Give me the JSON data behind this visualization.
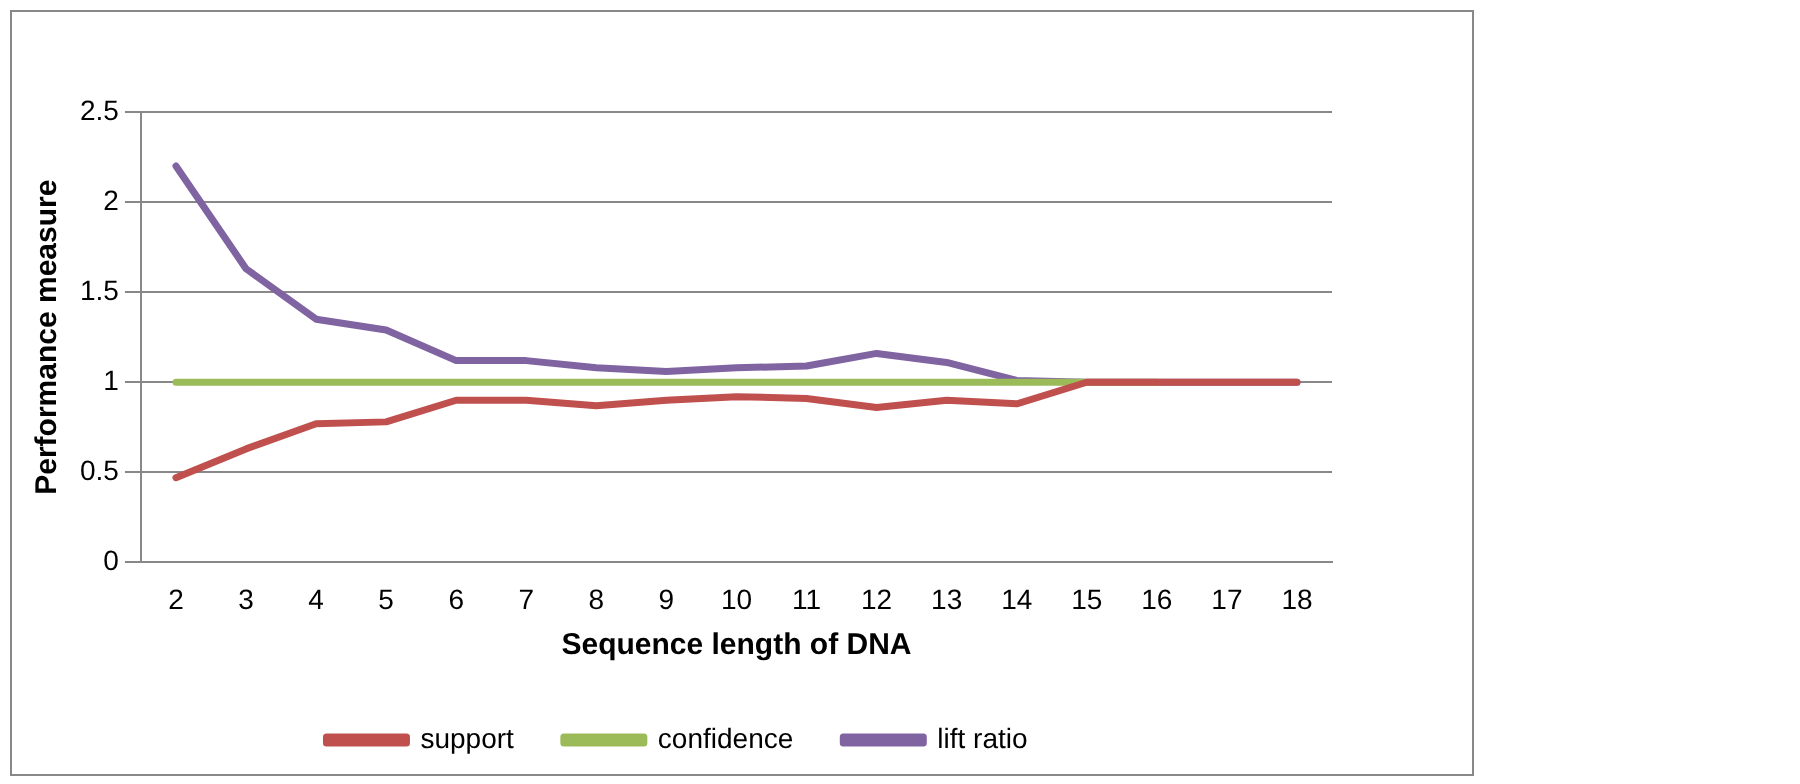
{
  "chart_data": {
    "type": "line",
    "xlabel": "Sequence length of DNA",
    "ylabel": "Performance measure",
    "categories": [
      "2",
      "3",
      "4",
      "5",
      "6",
      "7",
      "8",
      "9",
      "10",
      "11",
      "12",
      "13",
      "14",
      "15",
      "16",
      "17",
      "18"
    ],
    "series": [
      {
        "name": "support",
        "color": "#c0504d",
        "values": [
          0.47,
          0.63,
          0.77,
          0.78,
          0.9,
          0.9,
          0.87,
          0.9,
          0.92,
          0.91,
          0.86,
          0.9,
          0.88,
          1,
          1,
          1,
          1
        ]
      },
      {
        "name": "confidence",
        "color": "#9bbb59",
        "values": [
          1,
          1,
          1,
          1,
          1,
          1,
          1,
          1,
          1,
          1,
          1,
          1,
          1,
          1,
          1,
          null,
          null
        ]
      },
      {
        "name": "lift ratio",
        "color": "#8064a2",
        "values": [
          2.2,
          1.63,
          1.35,
          1.29,
          1.12,
          1.12,
          1.08,
          1.06,
          1.08,
          1.09,
          1.16,
          1.11,
          1.01,
          1,
          1,
          1,
          1
        ]
      }
    ],
    "ylim": [
      0,
      2.5
    ],
    "yticks": [
      0,
      0.5,
      1,
      1.5,
      2,
      2.5
    ],
    "grid": "y",
    "legend": "bottom",
    "marker": "none",
    "line_style": "solid"
  }
}
